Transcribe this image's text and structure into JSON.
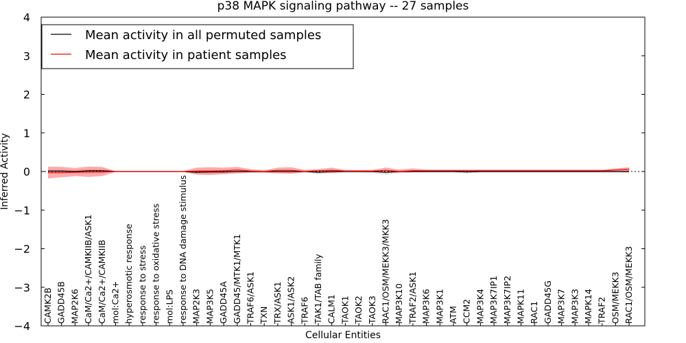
{
  "chart_data": {
    "type": "line",
    "title": "p38 MAPK signaling pathway -- 27 samples",
    "xlabel": "Cellular Entities",
    "ylabel": "Inferred Activity",
    "ylim": [
      -4,
      4
    ],
    "yticks": [
      "4",
      "3",
      "2",
      "1",
      "0",
      "−1",
      "−2",
      "−3",
      "−4"
    ],
    "ytick_values": [
      4,
      3,
      2,
      1,
      0,
      -1,
      -2,
      -3,
      -4
    ],
    "legend_position": "top-left",
    "categories": [
      "CAMK2B",
      "GADD45B",
      "MAP2K6",
      "CaM/Ca2+/CAMKIIB/ASK1",
      "CaM/Ca2+/CAMKIIB",
      "mol:Ca2+",
      "hyperosmotic response",
      "response to stress",
      "response to oxidative stress",
      "mol:LPS",
      "response to DNA damage stimulus",
      "MAP2K3",
      "MAP3K5",
      "GADD45A",
      "GADD45/MTK1/MTK1",
      "TRAF6/ASK1",
      "TXN",
      "TRX/ASK1",
      "ASK1/ASK2",
      "TRAF6",
      "TAK1/TAB family",
      "CALM1",
      "TAOK1",
      "TAOK2",
      "TAOK3",
      "RAC1/OSM/MEKK3/MKK3",
      "MAP3K10",
      "TRAF2/ASK1",
      "MAP3K6",
      "MAP3K1",
      "ATM",
      "CCM2",
      "MAP3K4",
      "MAP3K7IP1",
      "MAP3K7IP2",
      "MAPK11",
      "RAC1",
      "GADD45G",
      "MAP3K7",
      "MAP3K3",
      "MAPK14",
      "TRAF2",
      "OSM/MEKK3",
      "RAC1/OSM/MEKK3"
    ],
    "series": [
      {
        "name": "Mean activity in all permuted samples",
        "color": "#000000",
        "band_color": "#bbbbbb",
        "values": [
          0.01,
          0.01,
          0.0,
          0.02,
          0.02,
          0.0,
          0.0,
          0.0,
          0.0,
          0.0,
          0.0,
          -0.02,
          -0.01,
          -0.01,
          0.0,
          0.0,
          0.0,
          0.0,
          0.0,
          0.0,
          -0.02,
          0.0,
          0.0,
          0.0,
          0.0,
          -0.02,
          0.0,
          0.0,
          0.0,
          0.0,
          0.0,
          -0.01,
          0.0,
          0.0,
          0.0,
          0.0,
          0.0,
          0.0,
          0.0,
          0.0,
          0.0,
          0.0,
          0.0,
          0.0
        ],
        "band_lower": [
          -0.05,
          -0.05,
          -0.04,
          -0.05,
          -0.05,
          -0.01,
          -0.01,
          -0.01,
          -0.01,
          -0.01,
          -0.01,
          -0.07,
          -0.06,
          -0.05,
          -0.04,
          -0.03,
          -0.03,
          -0.04,
          -0.04,
          -0.03,
          -0.07,
          -0.05,
          -0.03,
          -0.03,
          -0.04,
          -0.08,
          -0.04,
          -0.03,
          -0.03,
          -0.03,
          -0.03,
          -0.05,
          -0.03,
          -0.03,
          -0.03,
          -0.03,
          -0.03,
          -0.03,
          -0.03,
          -0.03,
          -0.03,
          -0.03,
          -0.03,
          -0.04
        ],
        "band_upper": [
          0.06,
          0.06,
          0.04,
          0.07,
          0.07,
          0.01,
          0.01,
          0.01,
          0.01,
          0.01,
          0.01,
          0.03,
          0.04,
          0.04,
          0.05,
          0.03,
          0.03,
          0.04,
          0.04,
          0.03,
          0.03,
          0.05,
          0.03,
          0.03,
          0.04,
          0.04,
          0.04,
          0.03,
          0.03,
          0.03,
          0.03,
          0.03,
          0.03,
          0.03,
          0.03,
          0.03,
          0.03,
          0.03,
          0.03,
          0.03,
          0.03,
          0.03,
          0.03,
          0.04
        ]
      },
      {
        "name": "Mean activity in patient samples",
        "color": "#ff0000",
        "band_color": "#ff6666",
        "values": [
          -0.03,
          -0.03,
          -0.02,
          -0.01,
          -0.01,
          0.0,
          0.0,
          0.0,
          0.0,
          0.0,
          0.0,
          0.01,
          0.01,
          0.02,
          0.04,
          0.01,
          0.0,
          0.03,
          0.03,
          0.0,
          0.02,
          0.03,
          0.01,
          0.01,
          0.01,
          0.03,
          0.0,
          0.02,
          0.02,
          0.02,
          0.02,
          0.02,
          0.02,
          0.02,
          0.02,
          0.02,
          0.02,
          0.02,
          0.02,
          0.02,
          0.02,
          0.02,
          0.04,
          0.06
        ],
        "band_lower": [
          -0.18,
          -0.15,
          -0.12,
          -0.14,
          -0.12,
          -0.01,
          -0.01,
          -0.01,
          -0.01,
          -0.01,
          -0.01,
          -0.08,
          -0.09,
          -0.07,
          -0.05,
          -0.03,
          -0.03,
          -0.05,
          -0.06,
          -0.02,
          -0.02,
          -0.04,
          -0.01,
          -0.01,
          -0.02,
          -0.02,
          -0.03,
          -0.02,
          -0.01,
          -0.01,
          -0.01,
          -0.01,
          -0.01,
          -0.01,
          -0.01,
          -0.01,
          -0.01,
          -0.01,
          -0.01,
          -0.01,
          -0.01,
          -0.01,
          -0.01,
          -0.02
        ],
        "band_upper": [
          0.13,
          0.12,
          0.09,
          0.13,
          0.12,
          0.01,
          0.01,
          0.01,
          0.01,
          0.01,
          0.01,
          0.1,
          0.11,
          0.1,
          0.12,
          0.06,
          0.03,
          0.1,
          0.11,
          0.04,
          0.06,
          0.1,
          0.04,
          0.04,
          0.04,
          0.1,
          0.05,
          0.08,
          0.05,
          0.05,
          0.05,
          0.05,
          0.05,
          0.05,
          0.05,
          0.05,
          0.05,
          0.05,
          0.05,
          0.05,
          0.05,
          0.05,
          0.08,
          0.11
        ]
      }
    ]
  }
}
